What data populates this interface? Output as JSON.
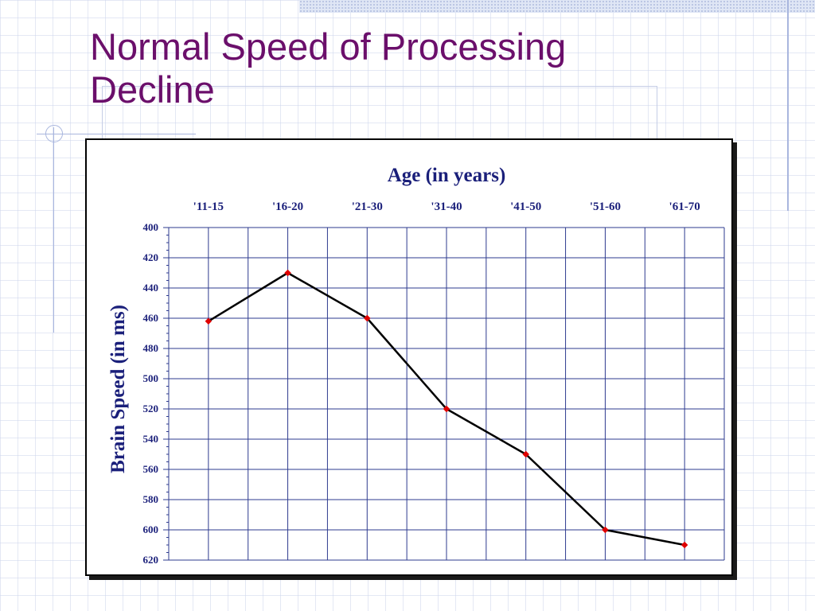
{
  "slide": {
    "title_line1": "Normal Speed of Processing",
    "title_line2": "Decline"
  },
  "colors": {
    "title": "#6b0f6b",
    "axis_text": "#1a1f7a",
    "grid": "#2e3b8f",
    "line": "#000000",
    "marker": "#e00000"
  },
  "chart_data": {
    "type": "line",
    "title": "Age (in years)",
    "xlabel": "Age (in years)",
    "ylabel": "Brain Speed (in ms)",
    "x_axis_position": "top",
    "y_axis_inverted": true,
    "categories": [
      "'11-15",
      "'16-20",
      "'21-30",
      "'31-40",
      "'41-50",
      "'51-60",
      "'61-70"
    ],
    "series": [
      {
        "values": [
          462,
          430,
          460,
          520,
          550,
          600,
          610
        ]
      }
    ],
    "ylim": [
      400,
      620
    ],
    "yticks": [
      400,
      420,
      440,
      460,
      480,
      500,
      520,
      540,
      560,
      580,
      600,
      620
    ],
    "grid": true,
    "legend": "none"
  }
}
